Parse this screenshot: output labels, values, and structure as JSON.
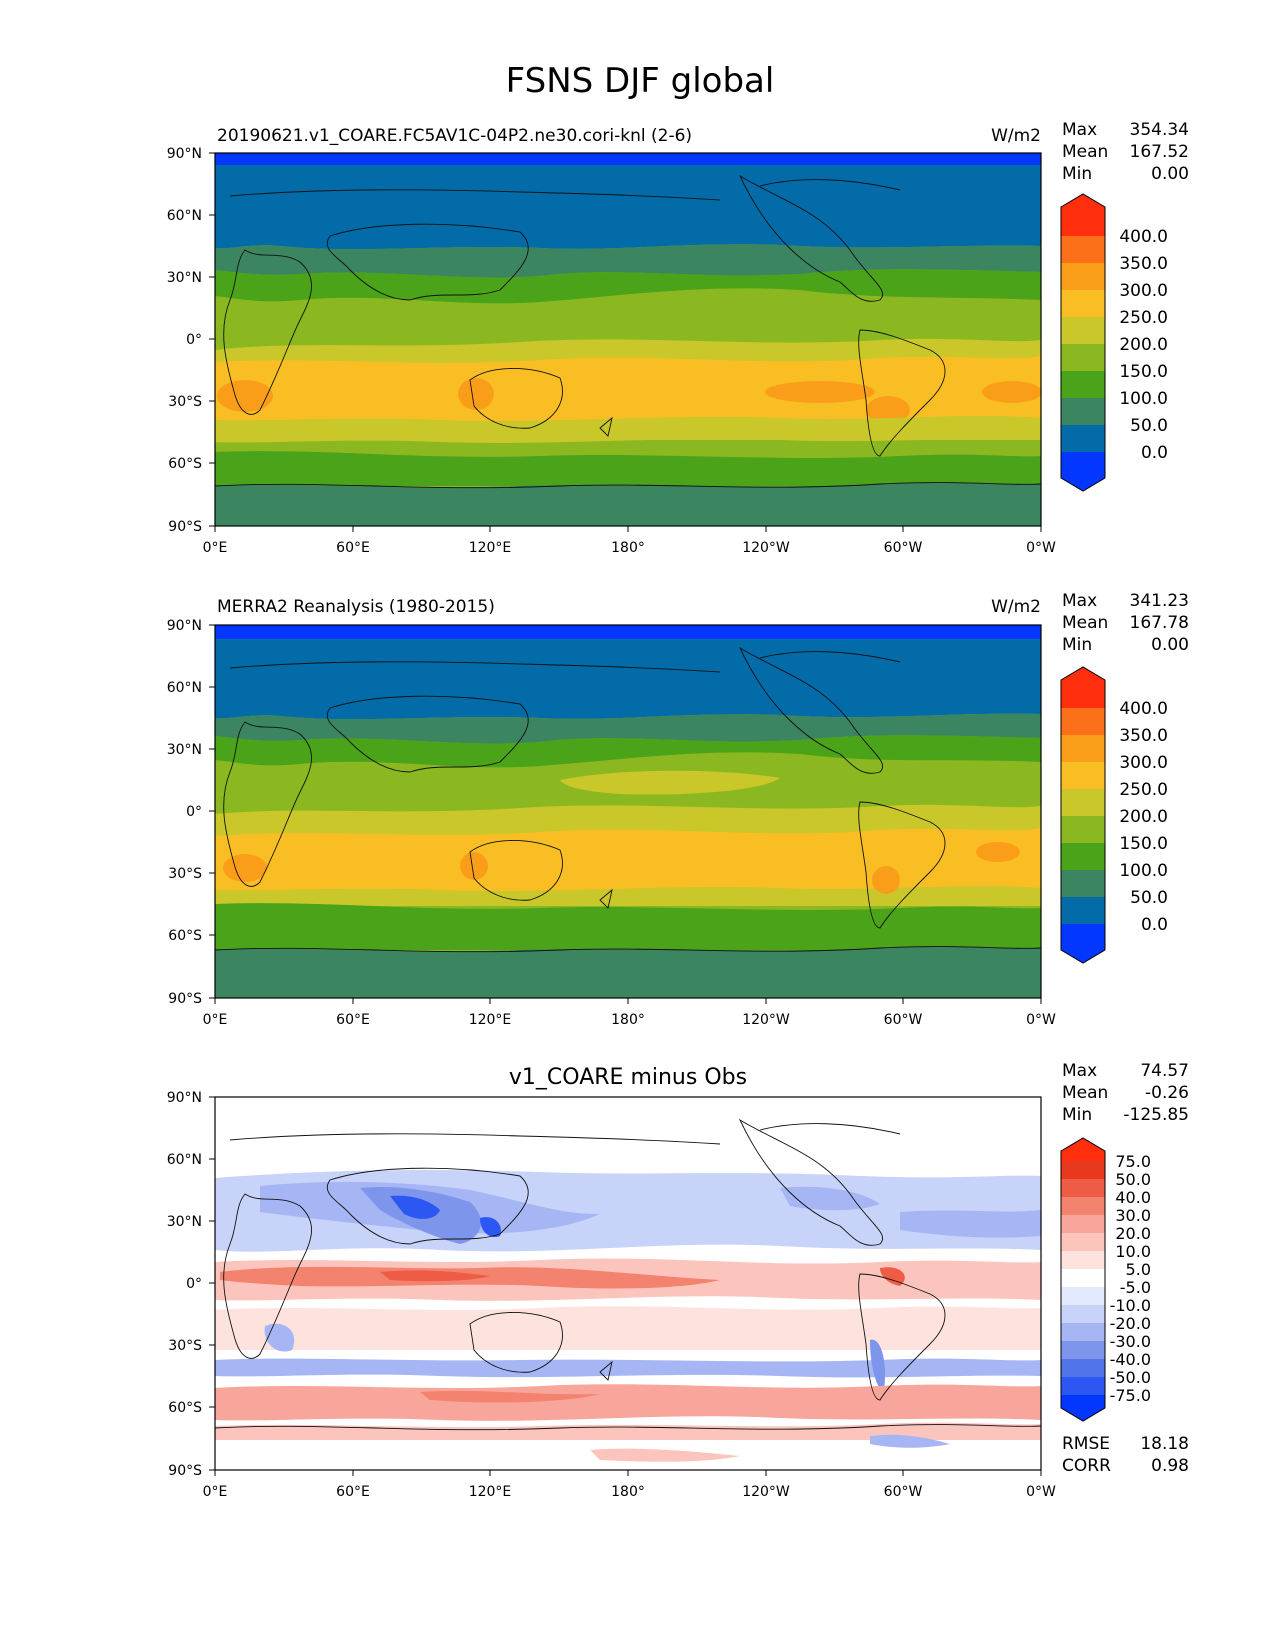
{
  "title": "FSNS DJF global",
  "lon_ticks": [
    "0°E",
    "60°E",
    "120°E",
    "180°",
    "120°W",
    "60°W",
    "0°W"
  ],
  "lat_ticks": [
    "90°N",
    "60°N",
    "30°N",
    "0°",
    "30°S",
    "60°S",
    "90°S"
  ],
  "stat_labels": {
    "max": "Max",
    "mean": "Mean",
    "min": "Min",
    "rmse": "RMSE",
    "corr": "CORR"
  },
  "colors": {
    "abs_levels": [
      "#0336FF",
      "#036CA8",
      "#3B8560",
      "#4AA319",
      "#8BB820",
      "#C9C72A",
      "#FABE25",
      "#FA9E1A",
      "#FC701A",
      "#FF2E0D"
    ],
    "diff_levels": [
      "#0336FF",
      "#2D57F2",
      "#5174E8",
      "#7E95EC",
      "#A6B6F4",
      "#C8D3FA",
      "#E4EAFD",
      "#FFFFFF",
      "#FDE2DD",
      "#FBC5BE",
      "#F8A59B",
      "#F3826F",
      "#EE5C45",
      "#E8391F",
      "#FF2E0D"
    ]
  },
  "panels": [
    {
      "left_title": "20190621.v1_COARE.FC5AV1C-04P2.ne30.cori-knl (2-6)",
      "center_title": "",
      "units": "W/m2",
      "stats": {
        "max": "354.34",
        "mean": "167.52",
        "min": "0.00"
      },
      "colorbar_labels": [
        "400.0",
        "350.0",
        "300.0",
        "250.0",
        "200.0",
        "150.0",
        "100.0",
        "50.0",
        "0.0"
      ]
    },
    {
      "left_title": "MERRA2 Reanalysis (1980-2015)",
      "center_title": "",
      "units": "W/m2",
      "stats": {
        "max": "341.23",
        "mean": "167.78",
        "min": "0.00"
      },
      "colorbar_labels": [
        "400.0",
        "350.0",
        "300.0",
        "250.0",
        "200.0",
        "150.0",
        "100.0",
        "50.0",
        "0.0"
      ]
    },
    {
      "left_title": "",
      "center_title": "v1_COARE minus Obs",
      "units": "",
      "stats": {
        "max": "74.57",
        "mean": "-0.26",
        "min": "-125.85",
        "rmse": "18.18",
        "corr": "0.98"
      },
      "colorbar_labels": [
        "75.0",
        "50.0",
        "40.0",
        "30.0",
        "20.0",
        "10.0",
        "5.0",
        "-5.0",
        "-10.0",
        "-20.0",
        "-30.0",
        "-40.0",
        "-50.0",
        "-75.0"
      ]
    }
  ]
}
